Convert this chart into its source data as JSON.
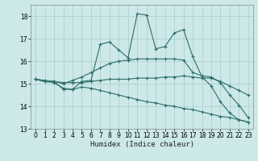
{
  "xlabel": "Humidex (Indice chaleur)",
  "xlim": [
    -0.5,
    23.5
  ],
  "ylim": [
    13,
    18.5
  ],
  "yticks": [
    13,
    14,
    15,
    16,
    17,
    18
  ],
  "xticks": [
    0,
    1,
    2,
    3,
    4,
    5,
    6,
    7,
    8,
    9,
    10,
    11,
    12,
    13,
    14,
    15,
    16,
    17,
    18,
    19,
    20,
    21,
    22,
    23
  ],
  "bg_color": "#cce8e8",
  "grid_color": "#aacccc",
  "line_color": "#2d6e6a",
  "lines": [
    {
      "x": [
        0,
        1,
        2,
        3,
        4,
        5,
        6,
        7,
        8,
        9,
        10,
        11,
        12,
        13,
        14,
        15,
        16,
        17,
        18,
        19,
        20,
        21,
        22,
        23
      ],
      "y": [
        15.2,
        15.1,
        15.1,
        14.75,
        14.75,
        15.1,
        15.15,
        16.75,
        16.85,
        16.5,
        16.15,
        18.1,
        18.05,
        16.55,
        16.65,
        17.25,
        17.4,
        16.2,
        15.3,
        14.9,
        14.2,
        13.7,
        13.4,
        13.3
      ]
    },
    {
      "x": [
        0,
        1,
        2,
        3,
        4,
        5,
        6,
        7,
        8,
        9,
        10,
        11,
        12,
        13,
        14,
        15,
        16,
        17,
        18,
        19,
        20,
        21,
        22,
        23
      ],
      "y": [
        15.2,
        15.1,
        15.1,
        15.0,
        15.15,
        15.3,
        15.5,
        15.7,
        15.9,
        16.0,
        16.05,
        16.1,
        16.1,
        16.1,
        16.1,
        16.1,
        16.05,
        15.5,
        15.35,
        15.3,
        15.05,
        14.5,
        14.05,
        13.5
      ]
    },
    {
      "x": [
        0,
        1,
        2,
        3,
        4,
        5,
        6,
        7,
        8,
        9,
        10,
        11,
        12,
        13,
        14,
        15,
        16,
        17,
        18,
        19,
        20,
        21,
        22,
        23
      ],
      "y": [
        15.2,
        15.15,
        15.1,
        15.05,
        15.05,
        15.05,
        15.1,
        15.15,
        15.2,
        15.2,
        15.2,
        15.25,
        15.25,
        15.25,
        15.3,
        15.3,
        15.35,
        15.3,
        15.25,
        15.25,
        15.1,
        14.9,
        14.7,
        14.5
      ]
    },
    {
      "x": [
        0,
        1,
        2,
        3,
        4,
        5,
        6,
        7,
        8,
        9,
        10,
        11,
        12,
        13,
        14,
        15,
        16,
        17,
        18,
        19,
        20,
        21,
        22,
        23
      ],
      "y": [
        15.2,
        15.1,
        15.05,
        14.8,
        14.75,
        14.85,
        14.8,
        14.7,
        14.6,
        14.5,
        14.4,
        14.3,
        14.2,
        14.15,
        14.05,
        14.0,
        13.9,
        13.85,
        13.75,
        13.65,
        13.55,
        13.5,
        13.4,
        13.3
      ]
    }
  ]
}
